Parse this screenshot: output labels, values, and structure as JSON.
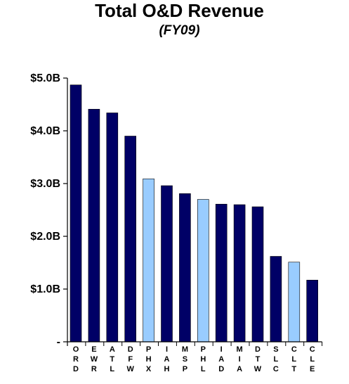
{
  "chart_data": {
    "type": "bar",
    "title": "Total O&D Revenue",
    "subtitle": "(FY09)",
    "xlabel": "",
    "ylabel": "",
    "ylim": [
      0,
      5.0
    ],
    "yticks": [
      {
        "value": 0,
        "label": "-"
      },
      {
        "value": 1.0,
        "label": "$1.0B"
      },
      {
        "value": 2.0,
        "label": "$2.0B"
      },
      {
        "value": 3.0,
        "label": "$3.0B"
      },
      {
        "value": 4.0,
        "label": "$4.0B"
      },
      {
        "value": 5.0,
        "label": "$5.0B"
      }
    ],
    "grid": false,
    "categories": [
      "ORD",
      "EWR",
      "ATL",
      "DFW",
      "PHX",
      "IAH",
      "MSP",
      "PHL",
      "IAD",
      "MIA",
      "DTW",
      "SLC",
      "CLT",
      "CLE"
    ],
    "values": [
      4.87,
      4.41,
      4.34,
      3.9,
      3.09,
      2.96,
      2.81,
      2.7,
      2.61,
      2.6,
      2.56,
      1.62,
      1.51,
      1.17
    ],
    "bar_colors": [
      "#000066",
      "#000066",
      "#000066",
      "#000066",
      "#99ccff",
      "#000066",
      "#000066",
      "#99ccff",
      "#000066",
      "#000066",
      "#000066",
      "#000066",
      "#99ccff",
      "#000066"
    ]
  }
}
